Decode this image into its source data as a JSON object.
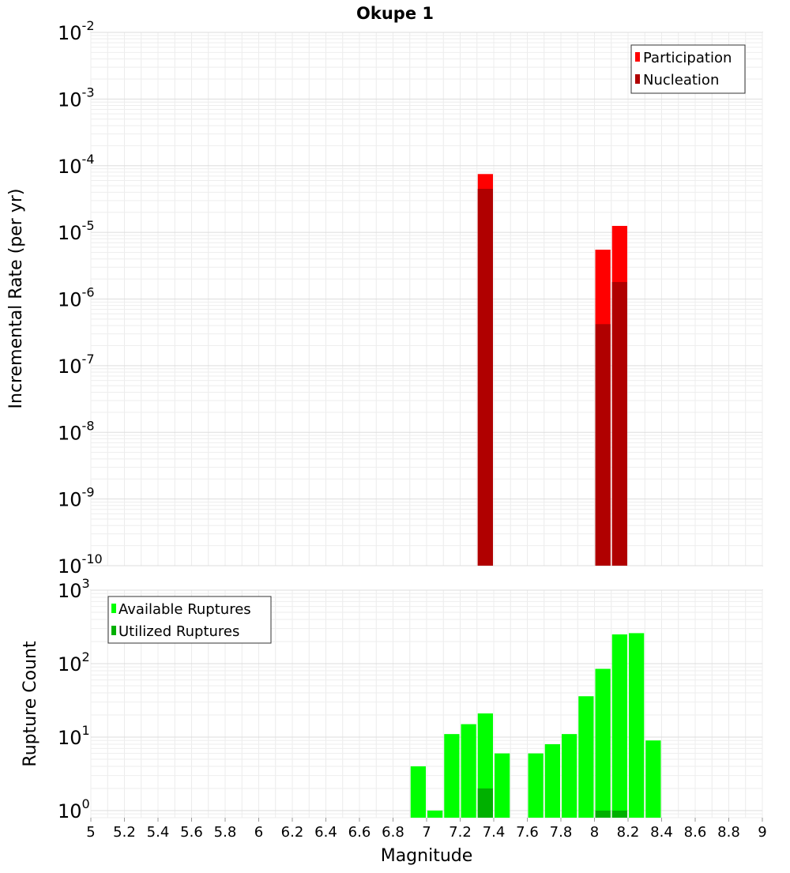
{
  "title": "Okupe 1",
  "chart_data": [
    {
      "type": "bar",
      "scale": "log",
      "ylabel": "Incremental Rate (per yr)",
      "ylim": [
        1e-10,
        0.01
      ],
      "y_tick_exponents": [
        "-2",
        "-3",
        "-4",
        "-5",
        "-6",
        "-7",
        "-8",
        "-9",
        "-10"
      ],
      "x_bin_width": 0.1,
      "grid": true,
      "legend_position": "top-right",
      "series": [
        {
          "name": "Participation",
          "color": "#ff0000",
          "x": [
            7.35,
            8.05,
            8.15
          ],
          "values": [
            7.5e-05,
            5.5e-06,
            1.25e-05
          ]
        },
        {
          "name": "Nucleation",
          "color": "#b00000",
          "x": [
            7.35,
            8.05,
            8.15
          ],
          "values": [
            4.5e-05,
            4.2e-07,
            1.8e-06
          ]
        }
      ]
    },
    {
      "type": "bar",
      "scale": "log",
      "ylabel": "Rupture Count",
      "ylim": [
        0.8,
        1000
      ],
      "y_tick_exponents": [
        "3",
        "2",
        "1",
        "0"
      ],
      "x_bin_width": 0.1,
      "grid": true,
      "legend_position": "top-left",
      "series": [
        {
          "name": "Available Ruptures",
          "color": "#00ff00",
          "x": [
            6.95,
            7.05,
            7.15,
            7.25,
            7.35,
            7.45,
            7.65,
            7.75,
            7.85,
            7.95,
            8.05,
            8.15,
            8.25,
            8.35
          ],
          "values": [
            4,
            1,
            11,
            15,
            21,
            6,
            6,
            8,
            11,
            36,
            85,
            250,
            260,
            9
          ]
        },
        {
          "name": "Utilized Ruptures",
          "color": "#00b000",
          "x": [
            7.35,
            8.05,
            8.15
          ],
          "values": [
            2,
            1,
            1
          ]
        }
      ]
    }
  ],
  "x_axis": {
    "label": "Magnitude",
    "min": 5,
    "max": 9,
    "ticks": [
      "5",
      "5.2",
      "5.4",
      "5.6",
      "5.8",
      "6",
      "6.2",
      "6.4",
      "6.6",
      "6.8",
      "7",
      "7.2",
      "7.4",
      "7.6",
      "7.8",
      "8",
      "8.2",
      "8.4",
      "8.6",
      "8.8",
      "9"
    ]
  }
}
